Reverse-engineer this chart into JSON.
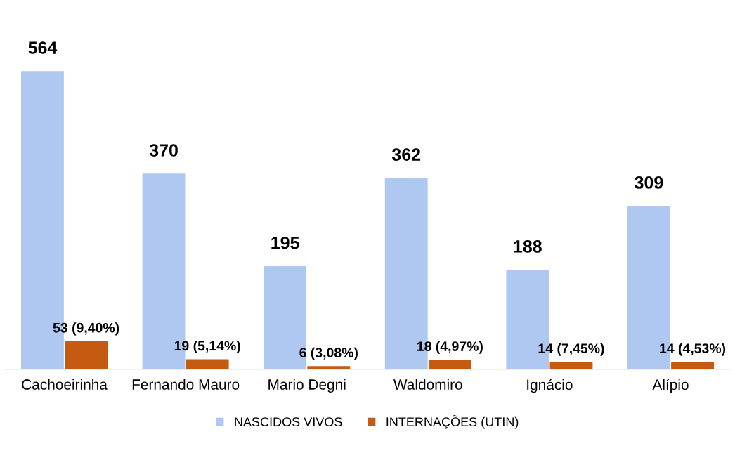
{
  "chart_data": {
    "type": "bar",
    "categories": [
      "Cachoeirinha",
      "Fernando Mauro",
      "Mario Degni",
      "Waldomiro",
      "Ignácio",
      "Alípio"
    ],
    "series": [
      {
        "name": "NASCIDOS VIVOS",
        "color": "#aec8f2",
        "values": [
          564,
          370,
          195,
          362,
          188,
          309
        ],
        "value_labels": [
          "564",
          "370",
          "195",
          "362",
          "188",
          "309"
        ]
      },
      {
        "name": "INTERNAÇÕES (UTIN)",
        "color": "#c55a11",
        "values": [
          53,
          19,
          6,
          18,
          14,
          14
        ],
        "value_labels": [
          "53 (9,40%)",
          "19 (5,14%)",
          "6 (3,08%)",
          "18 (4,97%)",
          "14 (7,45%)",
          "14 (4,53%)"
        ]
      }
    ],
    "legend": "bottom"
  }
}
